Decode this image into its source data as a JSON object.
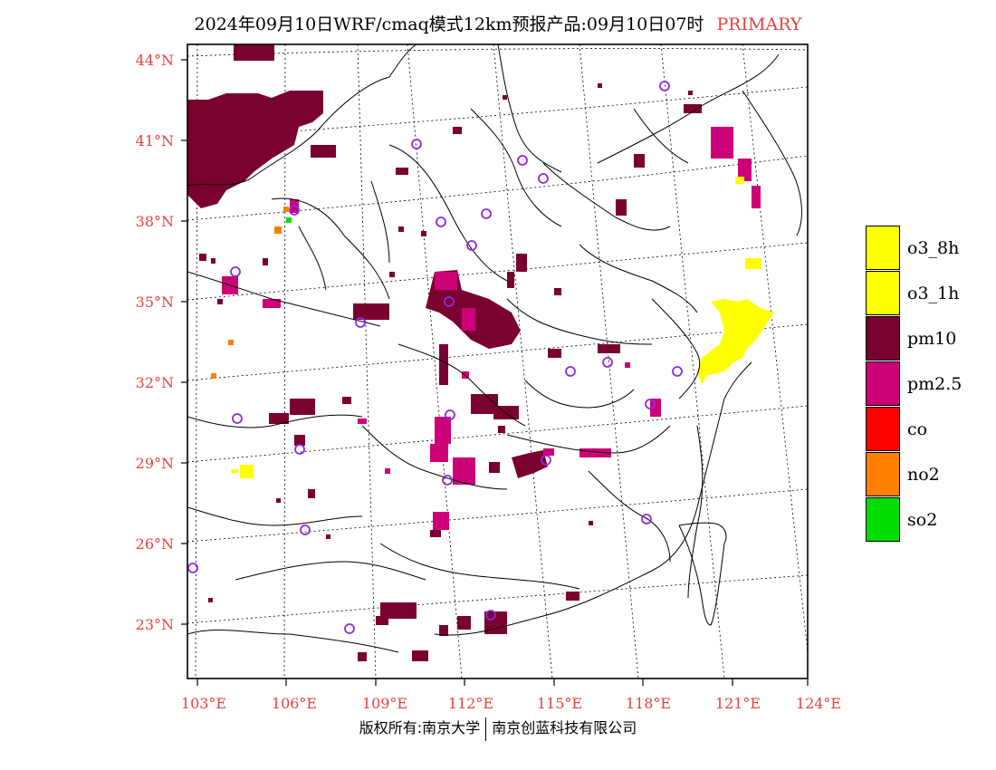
{
  "title": {
    "main": "2024年09月10日WRF/cmaq模式12km预报产品:09月10日07时",
    "tag": "PRIMARY",
    "tag_color": "#e8413a"
  },
  "axes": {
    "lat_labels": [
      "44°N",
      "41°N",
      "38°N",
      "35°N",
      "32°N",
      "29°N",
      "26°N",
      "23°N"
    ],
    "lon_labels": [
      "103°E",
      "106°E",
      "109°E",
      "112°E",
      "115°E",
      "118°E",
      "121°E",
      "124°E"
    ],
    "label_color": "#e8413a"
  },
  "legend": [
    {
      "label": "o3_8h",
      "color": "#ffff00"
    },
    {
      "label": "o3_1h",
      "color": "#ffff00"
    },
    {
      "label": "pm10",
      "color": "#7a0030"
    },
    {
      "label": "pm2.5",
      "color": "#cc0077"
    },
    {
      "label": "co",
      "color": "#ff0000"
    },
    {
      "label": "no2",
      "color": "#ff7f00"
    },
    {
      "label": "so2",
      "color": "#00dd00"
    }
  ],
  "footer": {
    "left": "版权所有:南京大学",
    "right": "南京创蓝科技有限公司"
  },
  "map": {
    "station_marker": "purple-circle-icon",
    "station_color": "#8a2be2",
    "boundary_color": "#000000"
  }
}
